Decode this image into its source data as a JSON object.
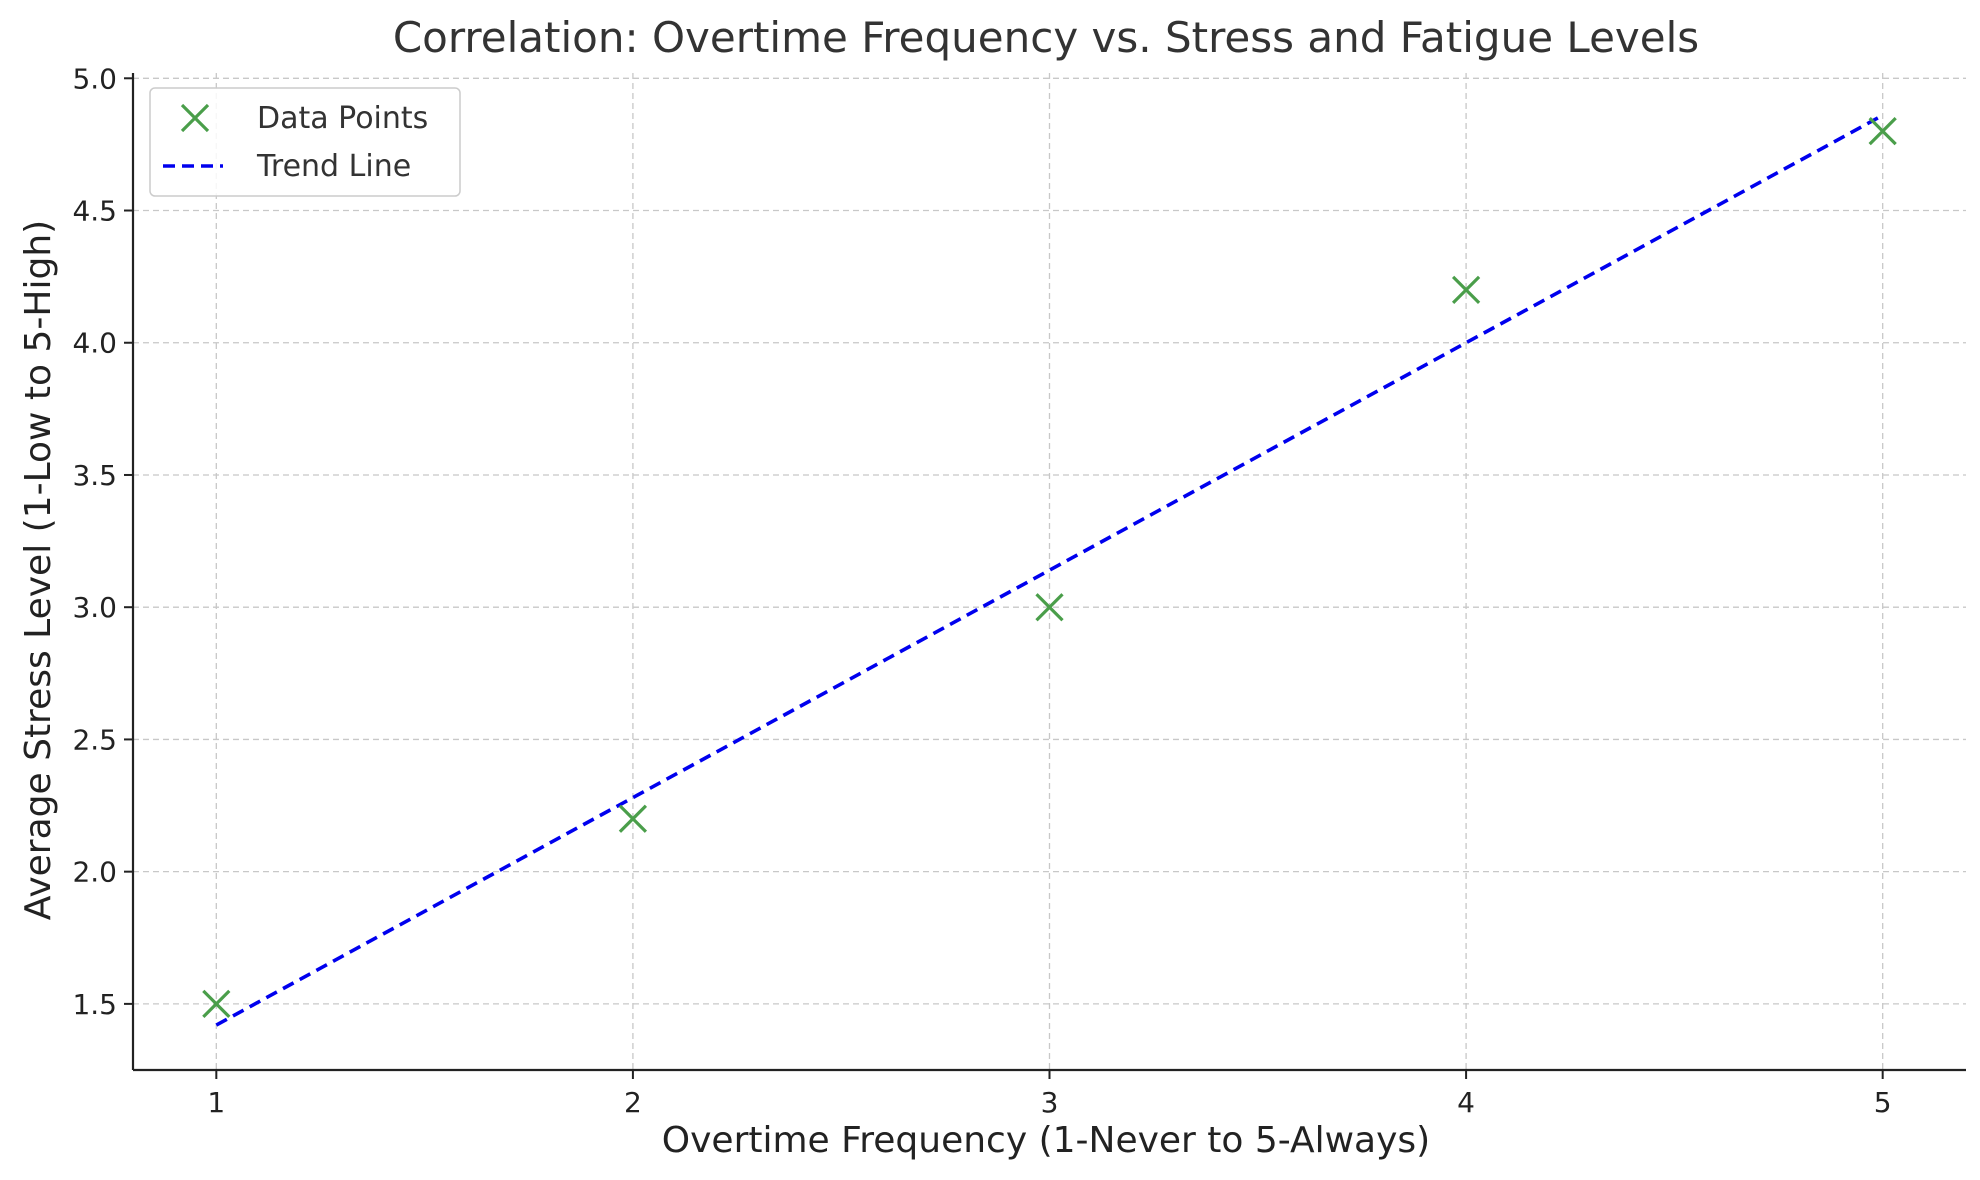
{
  "chart_data": {
    "type": "scatter",
    "title": "Correlation: Overtime Frequency vs. Stress and Fatigue Levels",
    "xlabel": "Overtime Frequency (1-Never to 5-Always)",
    "ylabel": "Average Stress Level (1-Low to 5-High)",
    "xlim": [
      0.8,
      5.2
    ],
    "ylim": [
      1.25,
      5.02
    ],
    "x_ticks": [
      1,
      2,
      3,
      4,
      5
    ],
    "x_tick_labels": [
      "1",
      "2",
      "3",
      "4",
      "5"
    ],
    "y_ticks": [
      1.5,
      2.0,
      2.5,
      3.0,
      3.5,
      4.0,
      4.5,
      5.0
    ],
    "y_tick_labels": [
      "1.5",
      "2.0",
      "2.5",
      "3.0",
      "3.5",
      "4.0",
      "4.5",
      "5.0"
    ],
    "grid": true,
    "legend_position": "top-left",
    "series": [
      {
        "name": "Data Points",
        "kind": "scatter",
        "marker": "x",
        "color": "#4a9e4a",
        "x": [
          1,
          2,
          3,
          4,
          5
        ],
        "y": [
          1.5,
          2.2,
          3.0,
          4.2,
          4.8
        ]
      },
      {
        "name": "Trend Line",
        "kind": "line",
        "style": "dashed",
        "color": "#0000ee",
        "x": [
          1,
          5
        ],
        "y": [
          1.42,
          4.86
        ]
      }
    ]
  }
}
